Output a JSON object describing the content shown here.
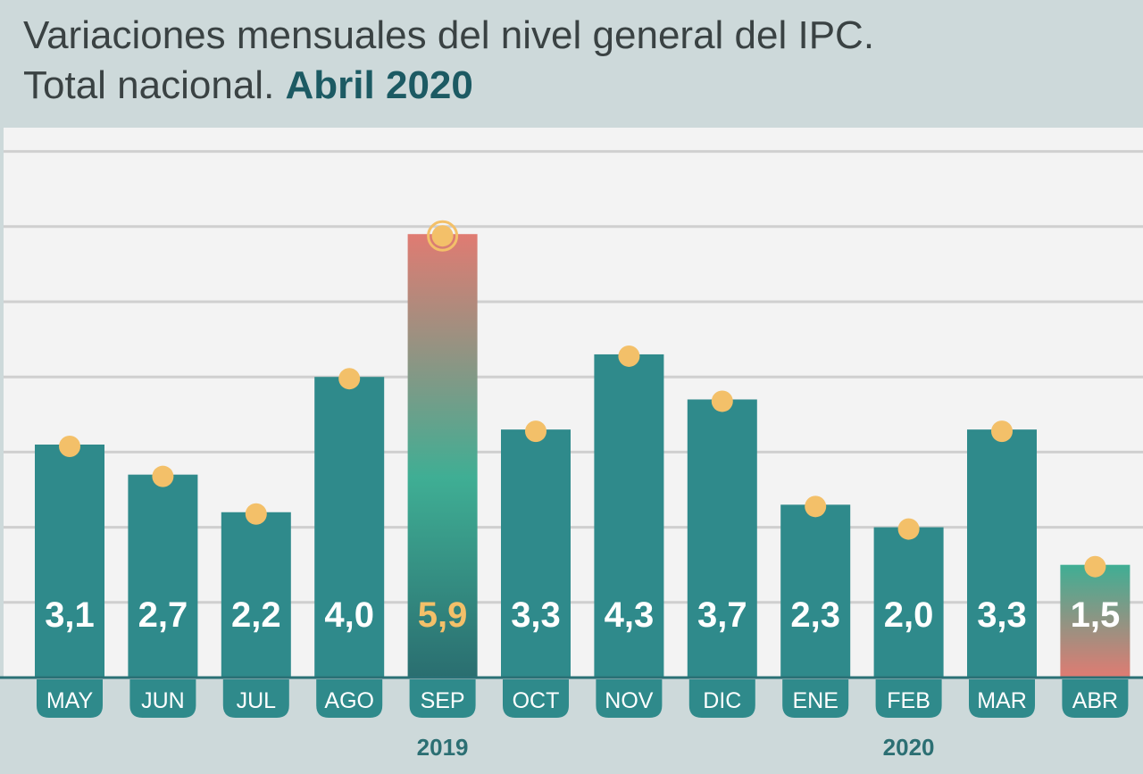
{
  "title": {
    "line1": "Variaciones mensuales del nivel general del IPC.",
    "line2_prefix": "Total nacional.",
    "line2_highlight": "Abril 2020"
  },
  "colors": {
    "background": "#cdd9da",
    "plot_background": "#f3f3f3",
    "gridline": "#cfcfcf",
    "bar": "#2f8a8b",
    "highlight_top": "#e07b72",
    "highlight_mid": "#3fae94",
    "highlight_bottom": "#2a6e70",
    "marker": "#f3c069",
    "value_text": "#ffffff",
    "highlight_value_text": "#f3c069",
    "year_text": "#2c6f73",
    "title_text": "#3a4243",
    "title_highlight": "#1c5a63"
  },
  "chart_data": {
    "type": "bar",
    "categories": [
      "MAY",
      "JUN",
      "JUL",
      "AGO",
      "SEP",
      "OCT",
      "NOV",
      "DIC",
      "ENE",
      "FEB",
      "MAR",
      "ABR"
    ],
    "values": [
      3.1,
      2.7,
      2.2,
      4.0,
      5.9,
      3.3,
      4.3,
      3.7,
      2.3,
      2.0,
      3.3,
      1.5
    ],
    "value_labels": [
      "3,1",
      "2,7",
      "2,2",
      "4,0",
      "5,9",
      "3,3",
      "4,3",
      "3,7",
      "2,3",
      "2,0",
      "3,3",
      "1,5"
    ],
    "year_labels": [
      {
        "label": "2019",
        "category": "SEP"
      },
      {
        "label": "2020",
        "category": "FEB"
      }
    ],
    "highlight_max": "SEP",
    "highlight_latest": "ABR",
    "ylim": [
      0,
      7
    ],
    "grid": true,
    "grid_step": 1,
    "legend": "none"
  }
}
